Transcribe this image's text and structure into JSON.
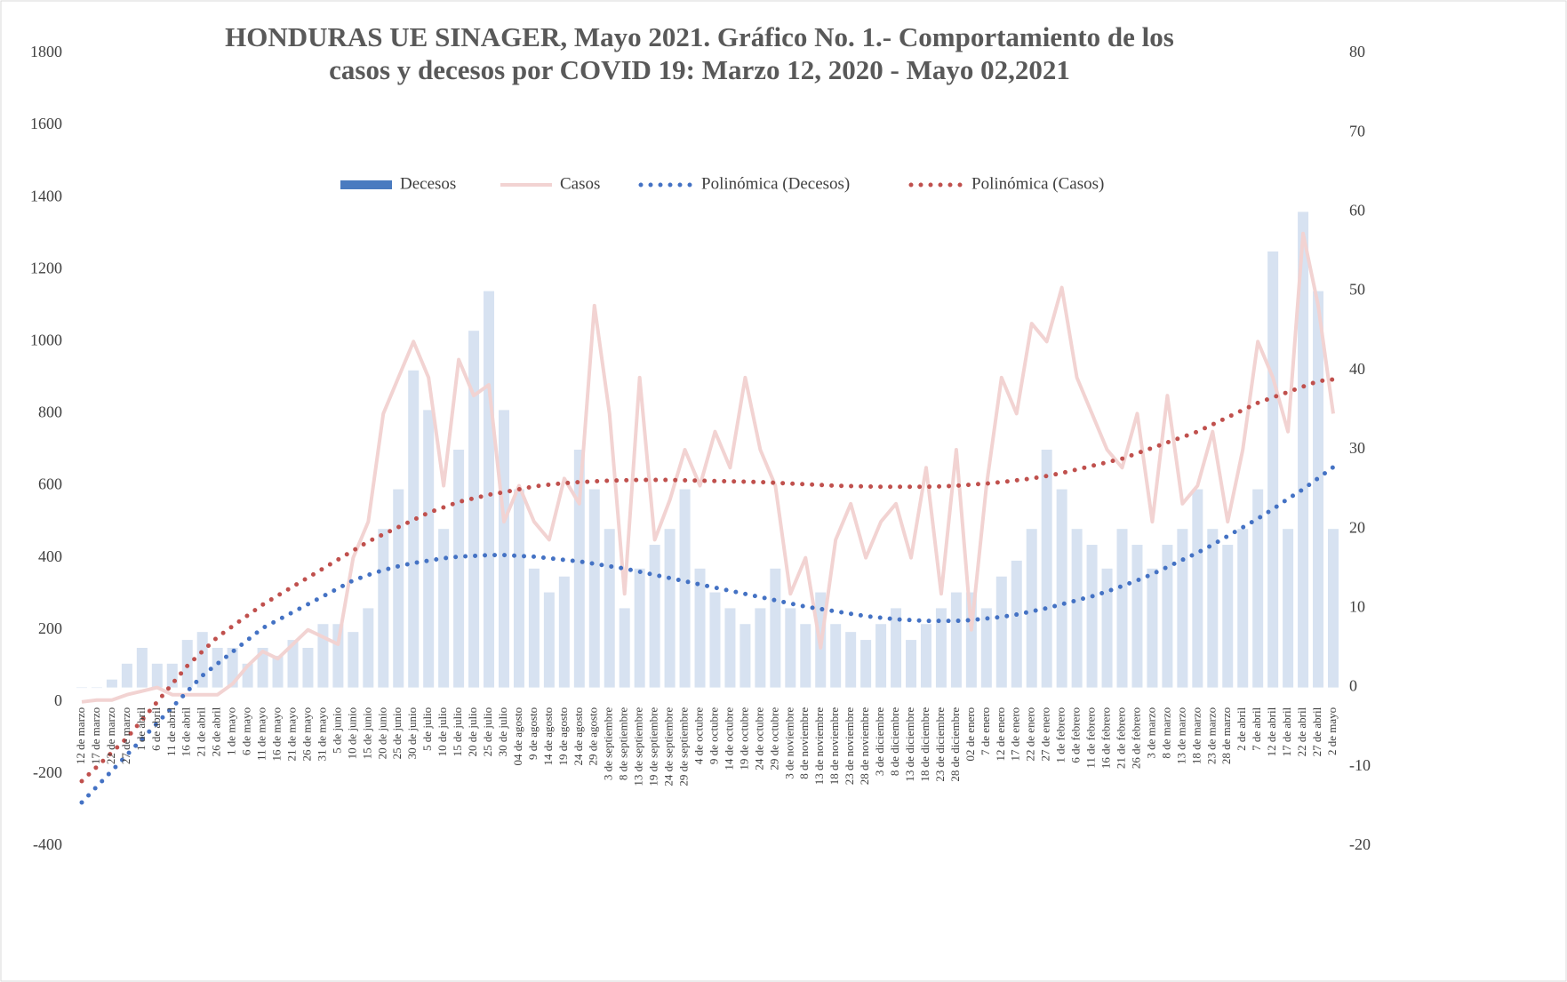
{
  "chart_data": {
    "type": "combo",
    "title": [
      "HONDURAS UE SINAGER, Mayo 2021.  Gráfico No. 1.- Comportamiento de los",
      "casos y decesos por COVID 19: Marzo 12, 2020 - Mayo 02,2021"
    ],
    "categories": [
      "12 de marzo",
      "17 de marzo",
      "22 de marzo",
      "27 de marzo",
      "1 de abril",
      "6 de abril",
      "11 de abril",
      "16 de abril",
      "21 de abril",
      "26 de abril",
      "1 de mayo",
      "6 de mayo",
      "11 de mayo",
      "16 de mayo",
      "21 de mayo",
      "26 de mayo",
      "31 de mayo",
      "5 de junio",
      "10 de junio",
      "15 de junio",
      "20 de junio",
      "25 de junio",
      "30 de junio",
      "5 de julio",
      "10 de julio",
      "15 de julio",
      "20 de julio",
      "25 de julio",
      "30 de julio",
      "04 de agosto",
      "9 de agosto",
      "14 de agosto",
      "19 de agosto",
      "24 de agosto",
      "29 de agosto",
      "3 de septiembre",
      "8 de septiembre",
      "13 de septiembre",
      "19 de septiembre",
      "24 de septiembre",
      "29 de septiembre",
      "4 de octubre",
      "9 de octubre",
      "14 de octubre",
      "19 de octubre",
      "24 de octubre",
      "29 de octubre",
      "3 de noviembre",
      "8 de noviembre",
      "13 de noviembre",
      "18 de noviembre",
      "23 de noviembre",
      "28 de noviembre",
      "3 de diciembre",
      "8 de diciembre",
      "13 de diciembre",
      "18 de diciembre",
      "23 de diciembre",
      "28 de diciembre",
      "02 de enero",
      "7 de enero",
      "12 de enero",
      "17 de enero",
      "22 de enero",
      "27 de enero",
      "1 de febrero",
      "6 de febrero",
      "11 de febrero",
      "16 de febrero",
      "21 de febrero",
      "26 de febrero",
      "3 de marzo",
      "8 de marzo",
      "13 de marzo",
      "18 de marzo",
      "23 de marzo",
      "28 de marzo",
      "2 de abril",
      "7 de abril",
      "12 de abril",
      "17 de abril",
      "22 de abril",
      "27 de abril",
      "2 de mayo"
    ],
    "series": [
      {
        "name": "Decesos",
        "type": "bar",
        "axis": "y2",
        "color": "#4a7bc0",
        "values": [
          0,
          0,
          1,
          3,
          5,
          3,
          3,
          6,
          7,
          5,
          5,
          3,
          5,
          4,
          6,
          5,
          8,
          8,
          7,
          10,
          20,
          25,
          40,
          35,
          20,
          30,
          45,
          50,
          35,
          25,
          15,
          12,
          14,
          30,
          25,
          20,
          10,
          15,
          18,
          20,
          25,
          15,
          12,
          10,
          8,
          10,
          15,
          10,
          8,
          12,
          8,
          7,
          6,
          8,
          10,
          6,
          8,
          10,
          12,
          12,
          10,
          14,
          16,
          20,
          30,
          25,
          20,
          18,
          15,
          20,
          18,
          15,
          18,
          20,
          25,
          20,
          18,
          20,
          25,
          55,
          20,
          60,
          50,
          20
        ]
      },
      {
        "name": "Casos",
        "type": "line",
        "color": "#f2d3d2",
        "values": [
          0,
          5,
          5,
          20,
          30,
          40,
          20,
          20,
          20,
          20,
          50,
          100,
          140,
          120,
          160,
          200,
          180,
          160,
          400,
          500,
          800,
          900,
          1000,
          900,
          600,
          950,
          850,
          880,
          500,
          600,
          500,
          450,
          620,
          550,
          1100,
          800,
          300,
          900,
          450,
          560,
          700,
          600,
          750,
          650,
          900,
          700,
          600,
          300,
          400,
          150,
          450,
          550,
          400,
          500,
          550,
          400,
          650,
          300,
          700,
          200,
          600,
          900,
          800,
          1050,
          1000,
          1150,
          900,
          800,
          700,
          650,
          800,
          500,
          850,
          550,
          600,
          750,
          500,
          700,
          1000,
          900,
          750,
          1300,
          1100,
          800
        ]
      },
      {
        "name": "Polinómica (Decesos)",
        "type": "dotted",
        "axis": "y2",
        "color": "#4472c4",
        "values": [
          -14.5,
          -12.5,
          -10.5,
          -8.5,
          -6.5,
          -4.5,
          -2.5,
          -0.5,
          1.5,
          3,
          4.5,
          6,
          7.5,
          8.5,
          9.5,
          10.5,
          11.5,
          12.5,
          13.5,
          14.2,
          14.8,
          15.3,
          15.7,
          16,
          16.3,
          16.5,
          16.6,
          16.7,
          16.7,
          16.6,
          16.5,
          16.3,
          16.1,
          15.9,
          15.6,
          15.3,
          15,
          14.6,
          14.2,
          13.8,
          13.4,
          13,
          12.6,
          12.2,
          11.8,
          11.4,
          11,
          10.6,
          10.2,
          9.9,
          9.6,
          9.3,
          9,
          8.8,
          8.6,
          8.5,
          8.4,
          8.4,
          8.4,
          8.5,
          8.7,
          8.9,
          9.2,
          9.6,
          10,
          10.5,
          11,
          11.5,
          12.1,
          12.8,
          13.5,
          14.3,
          15.2,
          16.1,
          17,
          18,
          19.1,
          20.2,
          21.3,
          22.5,
          23.8,
          25,
          26.4,
          27.8
        ]
      },
      {
        "name": "Polinómica (Casos)",
        "type": "dotted",
        "color": "#c0504d",
        "values": [
          -220,
          -180,
          -140,
          -100,
          -50,
          0,
          50,
          100,
          140,
          180,
          210,
          240,
          270,
          295,
          320,
          345,
          370,
          395,
          420,
          445,
          465,
          485,
          505,
          525,
          540,
          555,
          565,
          575,
          582,
          590,
          598,
          603,
          607,
          610,
          612,
          614,
          615,
          616,
          616,
          616,
          615,
          614,
          613,
          612,
          611,
          610,
          608,
          606,
          604,
          602,
          600,
          599,
          598,
          597,
          597,
          597,
          597,
          598,
          600,
          603,
          606,
          610,
          615,
          620,
          627,
          635,
          645,
          655,
          665,
          675,
          690,
          705,
          720,
          735,
          750,
          770,
          790,
          810,
          830,
          845,
          860,
          875,
          890,
          895
        ]
      }
    ],
    "ylim": [
      -400,
      1800
    ],
    "yticks": [
      -400,
      -200,
      0,
      200,
      400,
      600,
      800,
      1000,
      1200,
      1400,
      1600,
      1800
    ],
    "y2lim": [
      -20,
      80
    ],
    "y2ticks": [
      -20,
      -10,
      0,
      10,
      20,
      30,
      40,
      50,
      60,
      70,
      80
    ],
    "grid": false,
    "legend": "top"
  }
}
